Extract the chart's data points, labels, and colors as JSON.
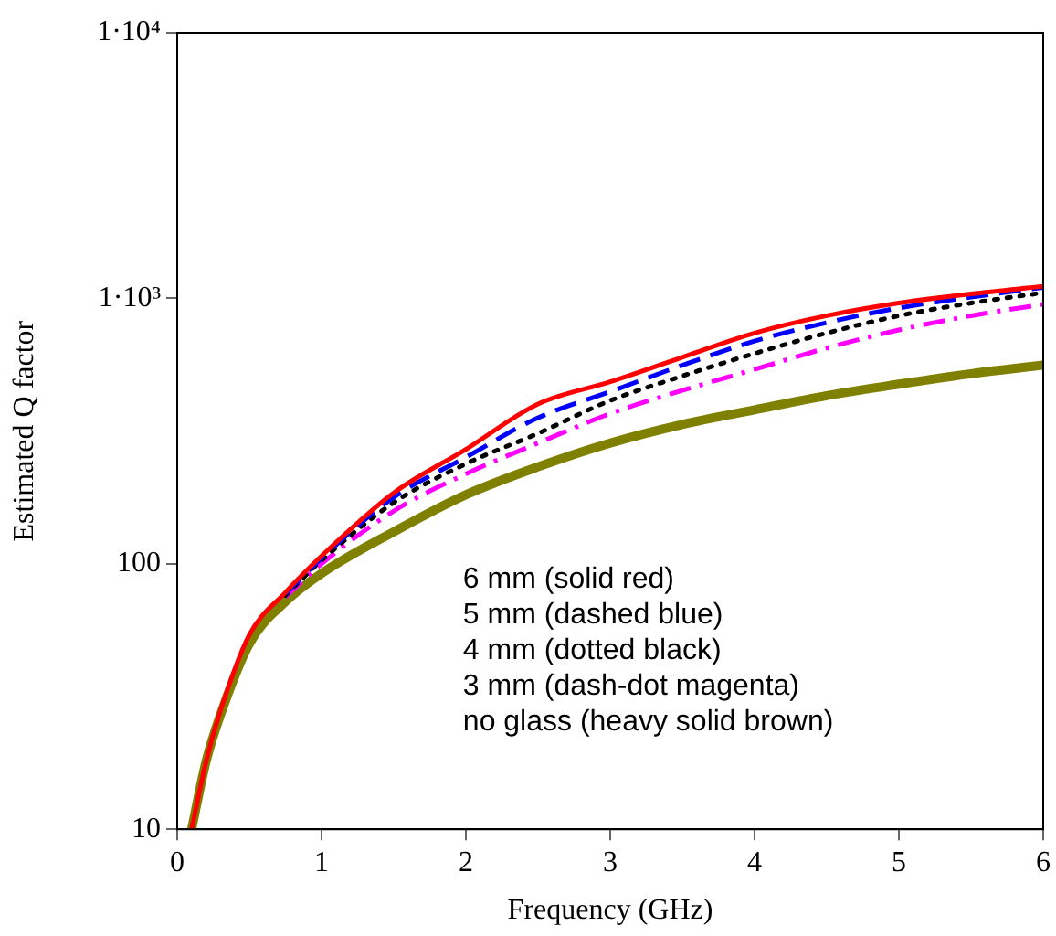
{
  "chart_data": {
    "type": "line",
    "xlabel": "Frequency (GHz)",
    "ylabel": "Estimated Q factor",
    "log": "y",
    "grid": false,
    "legend": false,
    "marker": "none",
    "xlim": [
      0,
      6
    ],
    "xticks": [
      0,
      1,
      2,
      3,
      4,
      5,
      6
    ],
    "ylim": [
      10,
      10000
    ],
    "yticks": [
      10,
      100,
      {
        "value": 1000,
        "label": "1·10³"
      },
      {
        "value": 10000,
        "label": "1·10⁴"
      }
    ],
    "x": [
      0.1,
      0.2,
      0.3,
      0.5,
      0.75,
      1,
      1.5,
      2,
      2.5,
      3,
      3.5,
      4,
      4.5,
      5,
      5.5,
      6
    ],
    "series": [
      {
        "color": "#ff0000",
        "line_style": "solid",
        "values": [
          10,
          18,
          28,
          54,
          78,
          107,
          185,
          270,
          400,
          485,
          600,
          740,
          860,
          960,
          1040,
          1110
        ]
      },
      {
        "color": "#0000ff",
        "line_style": "dashed",
        "x": [
          0.75,
          1,
          1.5,
          2,
          2.5,
          3,
          3.5,
          4,
          4.5,
          5,
          5.5,
          6
        ],
        "values": [
          77,
          105,
          178,
          252,
          355,
          445,
          560,
          690,
          810,
          920,
          1010,
          1100
        ]
      },
      {
        "color": "#000000",
        "line_style": "dotted",
        "x": [
          0.75,
          1,
          1.5,
          2,
          2.5,
          3,
          3.5,
          4,
          4.5,
          5,
          5.5,
          6
        ],
        "values": [
          76,
          103,
          170,
          238,
          310,
          412,
          510,
          620,
          740,
          860,
          960,
          1050
        ]
      },
      {
        "color": "#ff00ff",
        "line_style": "dashdot",
        "x": [
          0.75,
          1,
          1.5,
          2,
          2.5,
          3,
          3.5,
          4,
          4.5,
          5,
          5.5,
          6
        ],
        "values": [
          75,
          100,
          158,
          218,
          285,
          368,
          450,
          540,
          650,
          760,
          860,
          950
        ]
      },
      {
        "color": "#808000",
        "line_style": "solid",
        "values": [
          10,
          18,
          27,
          50,
          72,
          92,
          132,
          182,
          232,
          285,
          335,
          380,
          430,
          475,
          520,
          560
        ]
      }
    ],
    "annotations": [
      "6 mm (solid red)",
      "5 mm (dashed blue)",
      "4 mm (dotted black)",
      "3 mm (dash-dot magenta)",
      "no glass (heavy solid brown)"
    ]
  }
}
